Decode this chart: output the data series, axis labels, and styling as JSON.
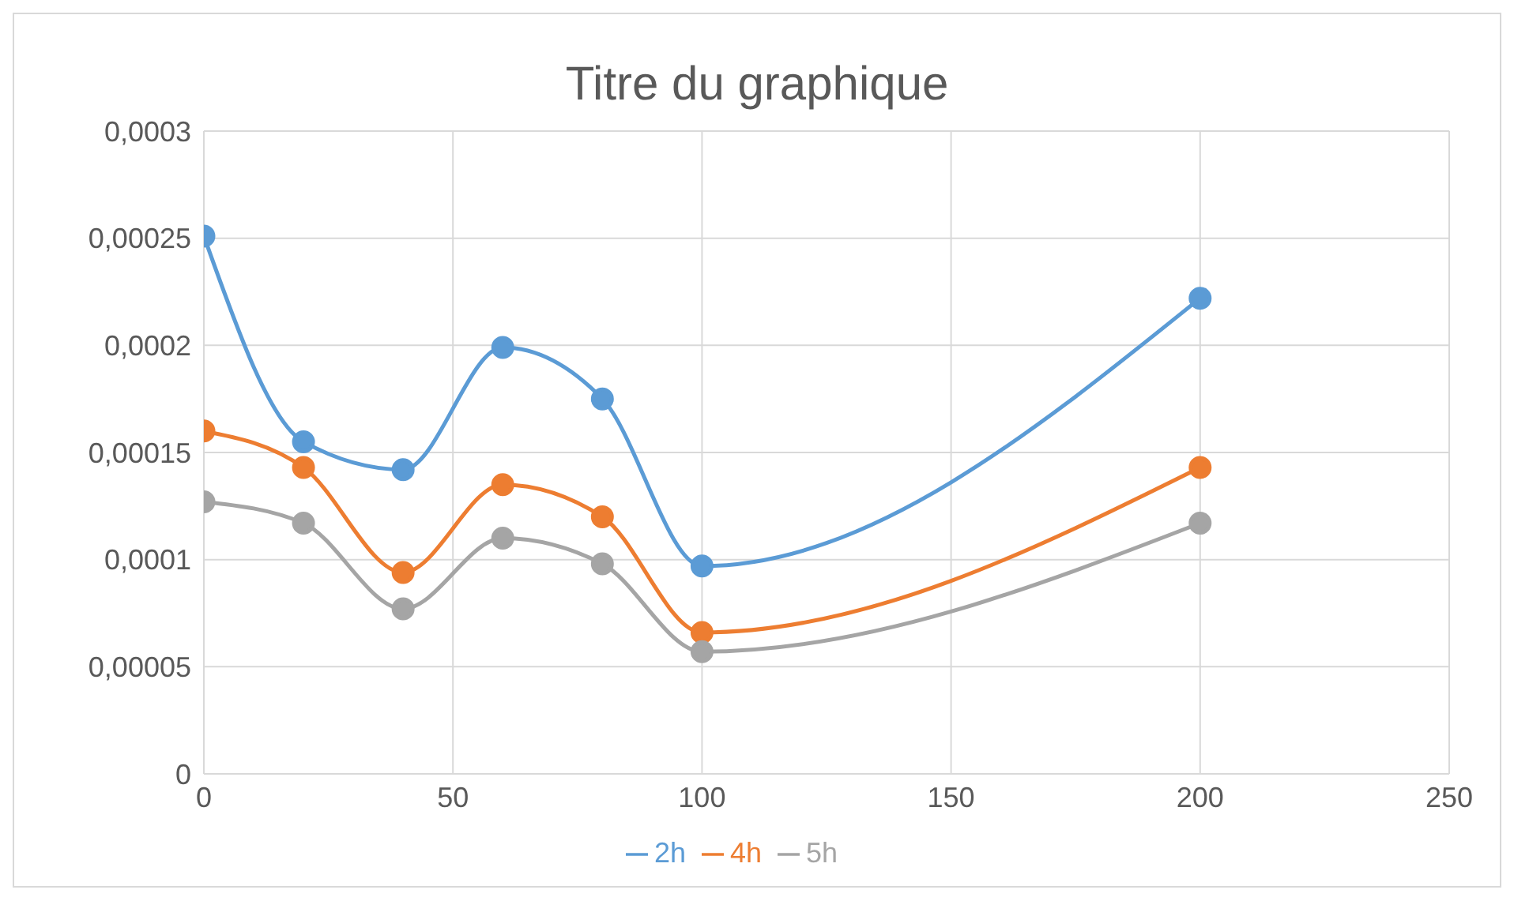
{
  "chart_data": {
    "type": "line",
    "title": "Titre du graphique",
    "x": [
      0,
      20,
      40,
      60,
      80,
      100,
      200
    ],
    "series": [
      {
        "name": "2h",
        "color": "#5b9bd5",
        "values": [
          0.000251,
          0.000155,
          0.000142,
          0.000199,
          0.000175,
          9.7e-05,
          0.000222
        ]
      },
      {
        "name": "4h",
        "color": "#ed7d31",
        "values": [
          0.00016,
          0.000143,
          9.4e-05,
          0.000135,
          0.00012,
          6.6e-05,
          0.000143
        ]
      },
      {
        "name": "5h",
        "color": "#a5a5a5",
        "values": [
          0.000127,
          0.000117,
          7.7e-05,
          0.00011,
          9.8e-05,
          5.7e-05,
          0.000117
        ]
      }
    ],
    "xlim": [
      0,
      250
    ],
    "xticks": [
      0,
      50,
      100,
      150,
      200,
      250
    ],
    "ylim": [
      0,
      0.0003
    ],
    "yticks": [
      0,
      {
        "value": 5e-05,
        "label": "0,00005"
      },
      {
        "value": 0.0001,
        "label": "0,0001"
      },
      {
        "value": 0.00015,
        "label": "0,00015"
      },
      {
        "value": 0.0002,
        "label": "0,0002"
      },
      {
        "value": 0.00025,
        "label": "0,00025"
      },
      {
        "value": 0.0003,
        "label": "0,0003"
      }
    ],
    "grid": true,
    "legend": "bottom",
    "marker": "circle",
    "line_style": "solid"
  }
}
